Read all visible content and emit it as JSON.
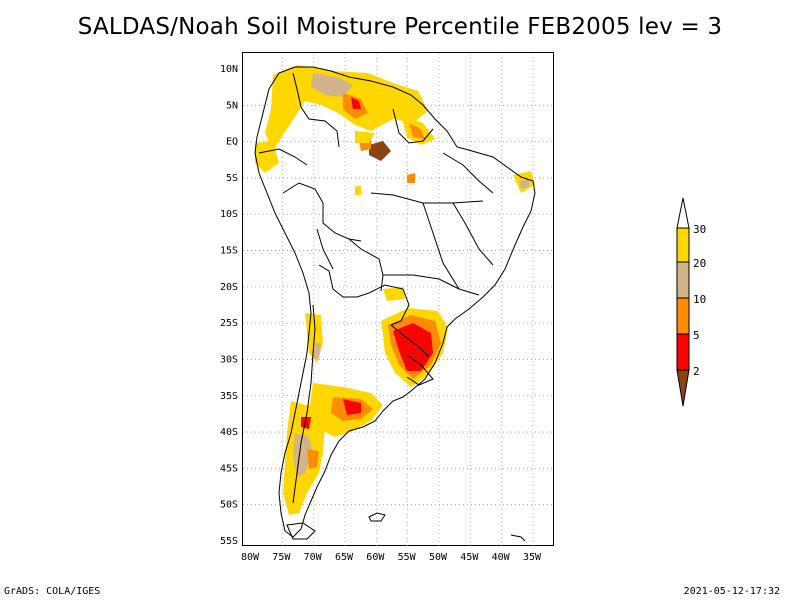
{
  "title": "SALDAS/Noah Soil Moisture Percentile FEB2005 lev = 3",
  "map": {
    "lat_ticks": [
      "10N",
      "5N",
      "EQ",
      "5S",
      "10S",
      "15S",
      "20S",
      "25S",
      "30S",
      "35S",
      "40S",
      "45S",
      "50S",
      "55S"
    ],
    "lon_ticks": [
      "80W",
      "75W",
      "70W",
      "65W",
      "60W",
      "55W",
      "50W",
      "45W",
      "40W",
      "35W"
    ],
    "grid": true
  },
  "colorbar": {
    "labels": [
      "30",
      "20",
      "10",
      "5",
      "2"
    ],
    "colors": {
      "above_30": "#ffffff",
      "20_30": "#ffd700",
      "10_20": "#d2b48c",
      "5_10": "#ff8c00",
      "2_5": "#ff0000",
      "below_2": "#8b4513"
    }
  },
  "footer": {
    "left": "GrADS: COLA/IGES",
    "right": "2021-05-12-17:32"
  }
}
